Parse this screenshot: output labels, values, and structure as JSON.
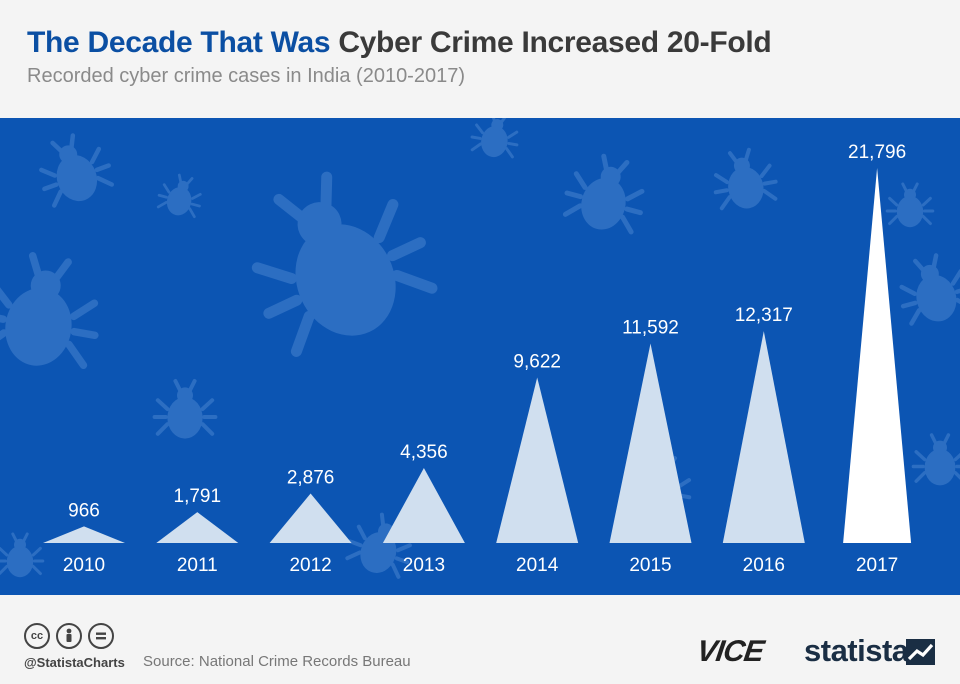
{
  "header": {
    "title_accent": "The Decade That Was",
    "title_main": "Cyber Crime Increased 20-Fold",
    "subtitle": "Recorded cyber crime cases in India (2010-2017)"
  },
  "chart_data": {
    "type": "bar",
    "title": "The Decade That Was Cyber Crime Increased 20-Fold",
    "subtitle": "Recorded cyber crime cases in India (2010-2017)",
    "categories": [
      "2010",
      "2011",
      "2012",
      "2013",
      "2014",
      "2015",
      "2016",
      "2017"
    ],
    "values": [
      966,
      1791,
      2876,
      4356,
      9622,
      11592,
      12317,
      21796
    ],
    "value_labels": [
      "966",
      "1,791",
      "2,876",
      "4,356",
      "9,622",
      "11,592",
      "12,317",
      "21,796"
    ],
    "ylim": [
      0,
      21796
    ],
    "grid": false,
    "mark_shape": "triangle",
    "colors": {
      "background": "#0c55b3",
      "bug_shapes": "#2c6ec2",
      "bars": "#d0dfef",
      "highlight_bar": "#ffffff",
      "labels": "#ffffff"
    }
  },
  "footer": {
    "cc_icons": [
      "cc-icon",
      "by-icon",
      "nd-icon"
    ],
    "handle": "@StatistaCharts",
    "source": "Source: National Crime Records Bureau",
    "vice_logo": "VICE",
    "statista_logo": "statista"
  }
}
